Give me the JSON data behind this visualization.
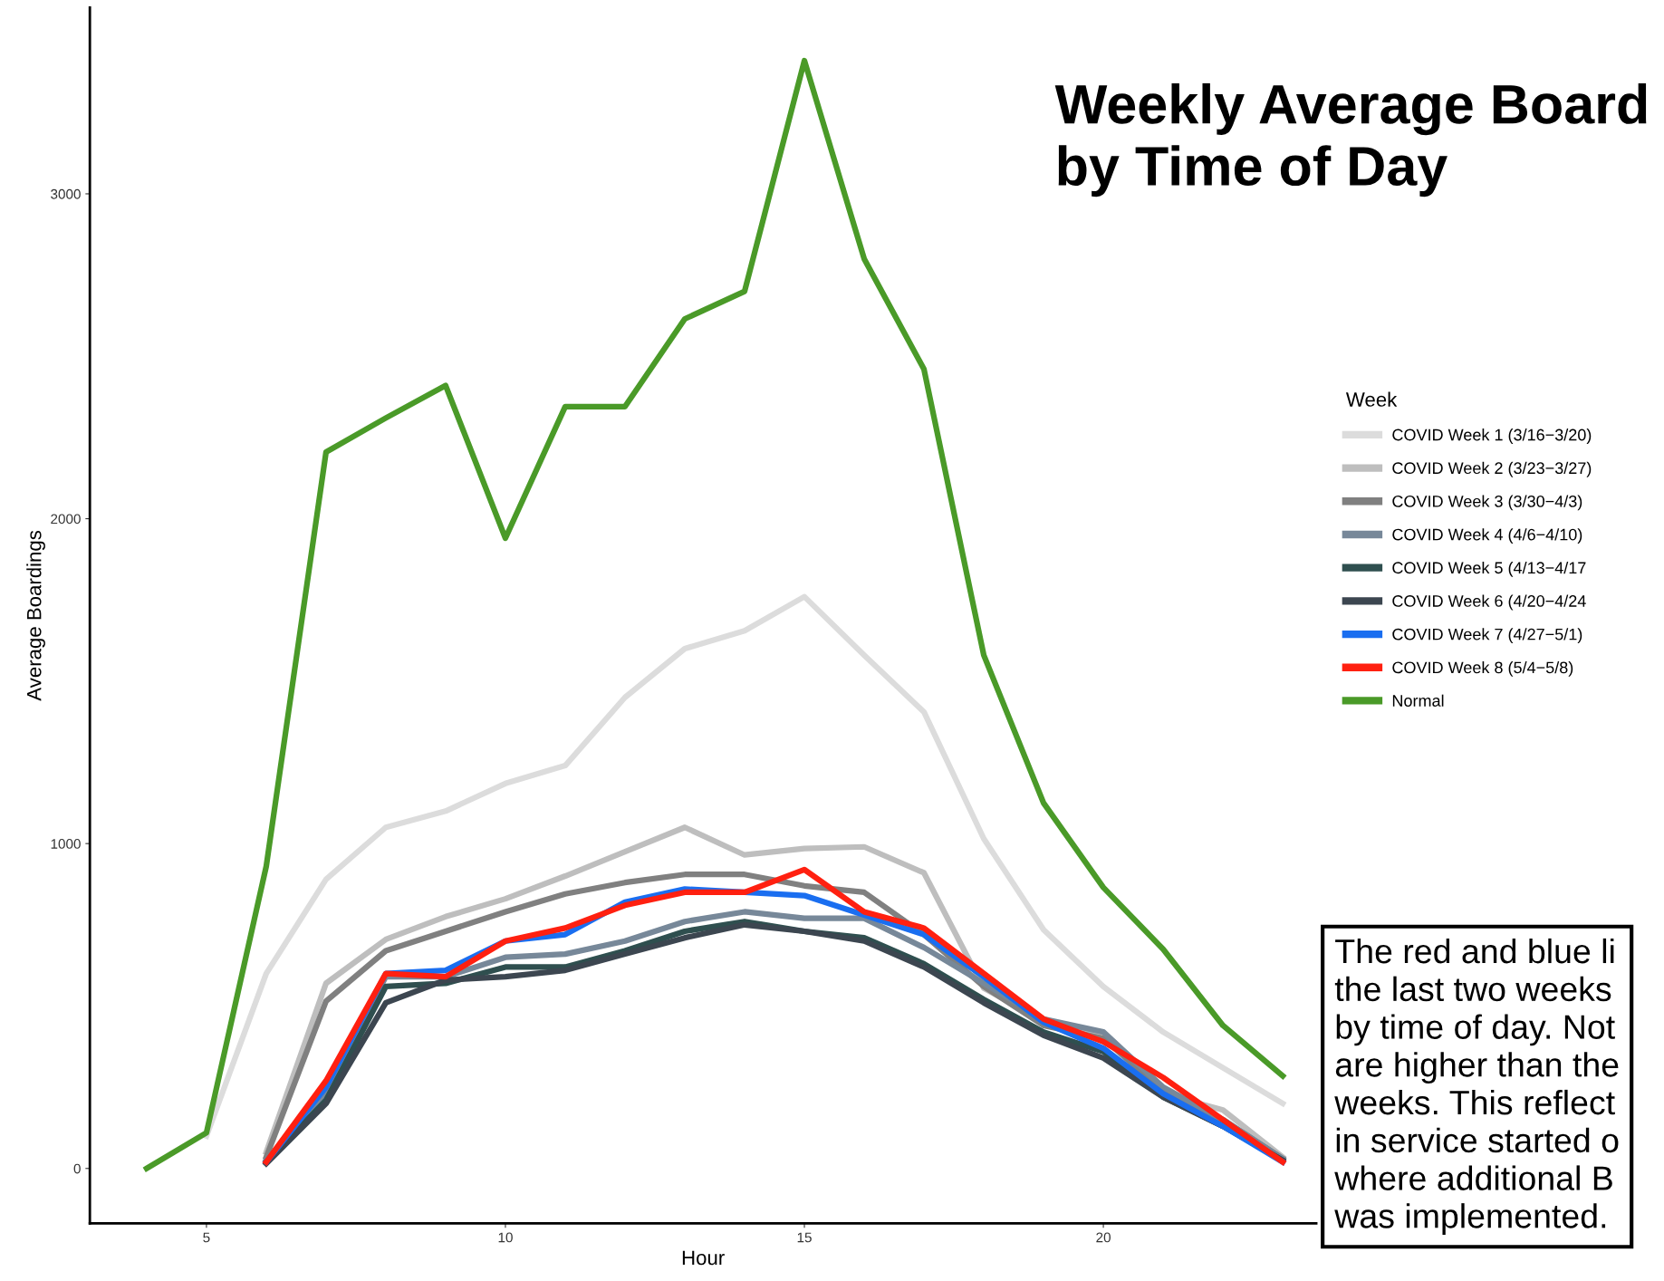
{
  "chart_data": {
    "type": "line",
    "title": "Weekly Average Board\nby Time of Day",
    "xlabel": "Hour",
    "ylabel": "Average Boardings",
    "legend_title": "Week",
    "x": [
      4,
      5,
      6,
      7,
      8,
      9,
      10,
      11,
      12,
      13,
      14,
      15,
      16,
      17,
      18,
      19,
      20,
      21,
      22,
      23
    ],
    "series": [
      {
        "name": "COVID Week 1 (3/16−3/20)",
        "color": "#dcdcdc",
        "values": [
          null,
          100,
          600,
          890,
          1050,
          1100,
          1185,
          1240,
          1450,
          1600,
          1655,
          1760,
          1580,
          1405,
          1015,
          735,
          560,
          420,
          310,
          200
        ]
      },
      {
        "name": "COVID Week 2 (3/23−3/27)",
        "color": "#bebebe",
        "values": [
          null,
          null,
          50,
          570,
          705,
          775,
          830,
          900,
          975,
          1050,
          965,
          985,
          990,
          910,
          555,
          455,
          405,
          230,
          180,
          35
        ]
      },
      {
        "name": "COVID Week 3 (3/30−4/3)",
        "color": "#808080",
        "values": [
          null,
          null,
          35,
          515,
          670,
          730,
          790,
          845,
          880,
          905,
          905,
          870,
          850,
          720,
          560,
          440,
          400,
          240,
          150,
          30
        ]
      },
      {
        "name": "COVID Week 4 (4/6−4/10)",
        "color": "#778899",
        "values": [
          null,
          null,
          25,
          230,
          590,
          590,
          650,
          660,
          700,
          760,
          790,
          770,
          770,
          680,
          570,
          460,
          420,
          250,
          150,
          30
        ]
      },
      {
        "name": "COVID Week 5 (4/13−4/17",
        "color": "#2f4f4f",
        "values": [
          null,
          null,
          20,
          210,
          560,
          570,
          620,
          620,
          670,
          730,
          760,
          730,
          710,
          630,
          520,
          420,
          360,
          220,
          130,
          25
        ]
      },
      {
        "name": "COVID Week 6 (4/20−4/24",
        "color": "#3c4650",
        "values": [
          null,
          null,
          15,
          200,
          510,
          580,
          590,
          610,
          660,
          710,
          750,
          730,
          700,
          620,
          510,
          410,
          340,
          220,
          130,
          25
        ]
      },
      {
        "name": "COVID Week 7 (4/27−5/1)",
        "color": "#1a6ef0",
        "values": [
          null,
          null,
          20,
          250,
          600,
          610,
          700,
          720,
          820,
          860,
          850,
          840,
          780,
          720,
          590,
          450,
          370,
          230,
          130,
          20
        ]
      },
      {
        "name": "COVID Week 8 (5/4−5/8)",
        "color": "#ff2010",
        "values": [
          null,
          null,
          20,
          270,
          600,
          590,
          700,
          740,
          810,
          850,
          850,
          920,
          790,
          740,
          600,
          460,
          390,
          280,
          150,
          20
        ]
      },
      {
        "name": "Normal",
        "color": "#4a9a28",
        "values": [
          0,
          110,
          930,
          2205,
          2310,
          2410,
          1940,
          2345,
          2345,
          2615,
          2700,
          3410,
          2800,
          2460,
          1580,
          1125,
          865,
          675,
          440,
          285
        ]
      }
    ],
    "xlim": [
      3.05,
      23.56
    ],
    "ylim": [
      -169,
      3573
    ],
    "xticks": [
      5,
      10,
      15,
      20
    ],
    "yticks": [
      0,
      1000,
      2000,
      3000
    ],
    "grid": false,
    "legend": "right",
    "marker": "none",
    "line_style": "solid",
    "annotations": [
      "The red and blue li\nthe last two weeks\nby time of day. Not\nare higher than the\nweeks. This reflect\nin service started o\nwhere additional B\nwas implemented."
    ]
  }
}
